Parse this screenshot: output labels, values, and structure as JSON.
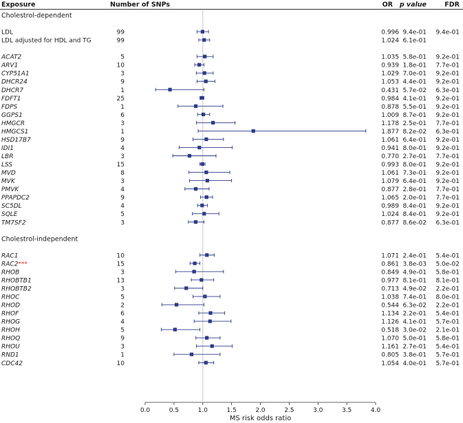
{
  "chart_data": {
    "type": "forest",
    "headers": {
      "exposure": "Exposure",
      "snps": "Number of SNPs",
      "or": "OR",
      "p": "p value",
      "fdr": "FDR"
    },
    "xlabel": "MS risk odds ratio",
    "xlim": [
      0.0,
      4.0
    ],
    "xticks": [
      "0.0",
      "0.5",
      "1.0",
      "1.5",
      "2.0",
      "2.5",
      "3.0",
      "3.5",
      "4.0"
    ],
    "reference_line": 1.0,
    "colors": {
      "marker": "#2e3a87",
      "reference": "#c8c8c8",
      "highlight": "#e8322e"
    },
    "rows": [
      {
        "kind": "section",
        "label": "Cholestrol-dependent"
      },
      {
        "kind": "spacer"
      },
      {
        "kind": "data",
        "label": "LDL",
        "italic": false,
        "snps": "99",
        "or": 0.996,
        "lo": 0.9,
        "hi": 1.1,
        "or_text": "0.996",
        "p": "9.4e-01",
        "fdr": "9.4e-01"
      },
      {
        "kind": "data",
        "label": " LDL adjusted for HDL and TG",
        "italic": false,
        "snps": "99",
        "or": 1.024,
        "lo": 0.93,
        "hi": 1.12,
        "or_text": "1.024",
        "p": "6.1e-01",
        "fdr": ""
      },
      {
        "kind": "spacer"
      },
      {
        "kind": "data",
        "label": "ACAT2",
        "italic": true,
        "snps": "5",
        "or": 1.035,
        "lo": 0.9,
        "hi": 1.18,
        "or_text": "1.035",
        "p": "5.8e-01",
        "fdr": "9.2e-01"
      },
      {
        "kind": "data",
        "label": "ARV1",
        "italic": true,
        "snps": "10",
        "or": 0.939,
        "lo": 0.86,
        "hi": 1.02,
        "or_text": "0.939",
        "p": "1.8e-01",
        "fdr": "7.7e-01"
      },
      {
        "kind": "data",
        "label": "CYP51A1",
        "italic": true,
        "snps": "3",
        "or": 1.029,
        "lo": 0.89,
        "hi": 1.18,
        "or_text": "1.029",
        "p": "7.0e-01",
        "fdr": "9.2e-01"
      },
      {
        "kind": "data",
        "label": "DHCR24",
        "italic": true,
        "snps": "9",
        "or": 1.053,
        "lo": 0.9,
        "hi": 1.21,
        "or_text": "1.053",
        "p": "4.4e-01",
        "fdr": "9.2e-01"
      },
      {
        "kind": "data",
        "label": "DHCR7",
        "italic": true,
        "snps": "1",
        "or": 0.431,
        "lo": 0.18,
        "hi": 1.02,
        "or_text": "0.431",
        "p": "5.7e-02",
        "fdr": "6.3e-01"
      },
      {
        "kind": "data",
        "label": "FDFT1",
        "italic": true,
        "snps": "25",
        "or": 0.984,
        "lo": 0.95,
        "hi": 1.02,
        "or_text": "0.984",
        "p": "4.1e-01",
        "fdr": "9.2e-01"
      },
      {
        "kind": "data",
        "label": "FDPS",
        "italic": true,
        "snps": "1",
        "or": 0.878,
        "lo": 0.57,
        "hi": 1.35,
        "or_text": "0.878",
        "p": "5.5e-01",
        "fdr": "9.2e-01"
      },
      {
        "kind": "data",
        "label": "GGPS1",
        "italic": true,
        "snps": "6",
        "or": 1.009,
        "lo": 0.91,
        "hi": 1.12,
        "or_text": "1.009",
        "p": "8.7e-01",
        "fdr": "9.2e-01"
      },
      {
        "kind": "data",
        "label": "HMGCR",
        "italic": true,
        "snps": "3",
        "or": 1.178,
        "lo": 0.89,
        "hi": 1.56,
        "or_text": "1.178",
        "p": "2.5e-01",
        "fdr": "7.7e-01"
      },
      {
        "kind": "data",
        "label": "HMGCS1",
        "italic": true,
        "snps": "1",
        "or": 1.877,
        "lo": 0.92,
        "hi": 3.83,
        "or_text": "1.877",
        "p": "8.2e-02",
        "fdr": "6.3e-01"
      },
      {
        "kind": "data",
        "label": "HSD17B7",
        "italic": true,
        "snps": "9",
        "or": 1.061,
        "lo": 0.83,
        "hi": 1.36,
        "or_text": "1.061",
        "p": "6.4e-01",
        "fdr": "9.2e-01"
      },
      {
        "kind": "data",
        "label": "IDI1",
        "italic": true,
        "snps": "4",
        "or": 0.941,
        "lo": 0.59,
        "hi": 1.51,
        "or_text": "0.941",
        "p": "8.0e-01",
        "fdr": "9.2e-01"
      },
      {
        "kind": "data",
        "label": "LBR",
        "italic": true,
        "snps": "3",
        "or": 0.77,
        "lo": 0.48,
        "hi": 1.23,
        "or_text": "0.770",
        "p": "2.7e-01",
        "fdr": "7.7e-01"
      },
      {
        "kind": "data",
        "label": "LSS",
        "italic": true,
        "snps": "15",
        "or": 0.993,
        "lo": 0.95,
        "hi": 1.04,
        "or_text": "0.993",
        "p": "8.0e-01",
        "fdr": "9.2e-01"
      },
      {
        "kind": "data",
        "label": "MVD",
        "italic": true,
        "snps": "8",
        "or": 1.061,
        "lo": 0.76,
        "hi": 1.47,
        "or_text": "1.061",
        "p": "7.3e-01",
        "fdr": "9.2e-01"
      },
      {
        "kind": "data",
        "label": "MVK",
        "italic": true,
        "snps": "3",
        "or": 1.079,
        "lo": 0.77,
        "hi": 1.5,
        "or_text": "1.079",
        "p": "6.4e-01",
        "fdr": "9.2e-01"
      },
      {
        "kind": "data",
        "label": "PMVK",
        "italic": true,
        "snps": "4",
        "or": 0.877,
        "lo": 0.69,
        "hi": 1.11,
        "or_text": "0.877",
        "p": "2.8e-01",
        "fdr": "7.7e-01"
      },
      {
        "kind": "data",
        "label": "PPAPDC2",
        "italic": true,
        "snps": "9",
        "or": 1.065,
        "lo": 0.96,
        "hi": 1.17,
        "or_text": "1.065",
        "p": "2.0e-01",
        "fdr": "7.7e-01"
      },
      {
        "kind": "data",
        "label": "SC5DL",
        "italic": true,
        "snps": "4",
        "or": 0.989,
        "lo": 0.91,
        "hi": 1.08,
        "or_text": "0.989",
        "p": "8.4e-01",
        "fdr": "9.2e-01"
      },
      {
        "kind": "data",
        "label": "SQLE",
        "italic": true,
        "snps": "5",
        "or": 1.024,
        "lo": 0.82,
        "hi": 1.28,
        "or_text": "1.024",
        "p": "8.4e-01",
        "fdr": "9.2e-01"
      },
      {
        "kind": "data",
        "label": "TM7SF2",
        "italic": true,
        "snps": "3",
        "or": 0.877,
        "lo": 0.75,
        "hi": 1.02,
        "or_text": "0.877",
        "p": "8.6e-02",
        "fdr": "6.3e-01"
      },
      {
        "kind": "spacer"
      },
      {
        "kind": "section",
        "label": "Cholestrol-independent"
      },
      {
        "kind": "spacer"
      },
      {
        "kind": "data",
        "label": "RAC1",
        "italic": true,
        "snps": "10",
        "or": 1.071,
        "lo": 0.95,
        "hi": 1.2,
        "or_text": "1.071",
        "p": "2.4e-01",
        "fdr": "5.4e-01"
      },
      {
        "kind": "data",
        "label": "RAC2",
        "marker_text": "***",
        "italic": true,
        "snps": "15",
        "or": 0.861,
        "lo": 0.78,
        "hi": 0.95,
        "or_text": "0.861",
        "p": "3.8e-03",
        "fdr": "5.0e-02"
      },
      {
        "kind": "data",
        "label": "RHOB",
        "italic": true,
        "snps": "3",
        "or": 0.849,
        "lo": 0.53,
        "hi": 1.36,
        "or_text": "0.849",
        "p": "4.9e-01",
        "fdr": "5.8e-01"
      },
      {
        "kind": "data",
        "label": "RHOBTB1",
        "italic": true,
        "snps": "13",
        "or": 0.977,
        "lo": 0.8,
        "hi": 1.19,
        "or_text": "0.977",
        "p": "8.1e-01",
        "fdr": "8.1e-01"
      },
      {
        "kind": "data",
        "label": "RHOBTB2",
        "italic": true,
        "snps": "3",
        "or": 0.713,
        "lo": 0.51,
        "hi": 1.0,
        "or_text": "0.713",
        "p": "4.9e-02",
        "fdr": "2.2e-01"
      },
      {
        "kind": "data",
        "label": "RHOC",
        "italic": true,
        "snps": "5",
        "or": 1.038,
        "lo": 0.83,
        "hi": 1.3,
        "or_text": "1.038",
        "p": "7.4e-01",
        "fdr": "8.0e-01"
      },
      {
        "kind": "data",
        "label": "RHOD",
        "italic": true,
        "snps": "2",
        "or": 0.544,
        "lo": 0.29,
        "hi": 1.02,
        "or_text": "0.544",
        "p": "6.3e-02",
        "fdr": "2.2e-01"
      },
      {
        "kind": "data",
        "label": "RHOF",
        "italic": true,
        "snps": "6",
        "or": 1.134,
        "lo": 0.93,
        "hi": 1.38,
        "or_text": "1.134",
        "p": "2.2e-01",
        "fdr": "5.4e-01"
      },
      {
        "kind": "data",
        "label": "RHOG",
        "italic": true,
        "snps": "4",
        "or": 1.126,
        "lo": 0.85,
        "hi": 1.49,
        "or_text": "1.126",
        "p": "4.1e-01",
        "fdr": "5.7e-01"
      },
      {
        "kind": "data",
        "label": "RHOH",
        "italic": true,
        "snps": "5",
        "or": 0.518,
        "lo": 0.28,
        "hi": 0.95,
        "or_text": "0.518",
        "p": "3.0e-02",
        "fdr": "2.1e-01"
      },
      {
        "kind": "data",
        "label": "RHOQ",
        "italic": true,
        "snps": "9",
        "or": 1.07,
        "lo": 0.88,
        "hi": 1.3,
        "or_text": "1.070",
        "p": "5.0e-01",
        "fdr": "5.8e-01"
      },
      {
        "kind": "data",
        "label": "RHOU",
        "italic": true,
        "snps": "3",
        "or": 1.161,
        "lo": 0.89,
        "hi": 1.51,
        "or_text": "1.161",
        "p": "2.7e-01",
        "fdr": "5.4e-01"
      },
      {
        "kind": "data",
        "label": "RND1",
        "italic": true,
        "snps": "1",
        "or": 0.805,
        "lo": 0.5,
        "hi": 1.3,
        "or_text": "0.805",
        "p": "3.8e-01",
        "fdr": "5.7e-01"
      },
      {
        "kind": "data",
        "label": "CDC42",
        "italic": true,
        "snps": "10",
        "or": 1.054,
        "lo": 0.93,
        "hi": 1.19,
        "or_text": "1.054",
        "p": "4.0e-01",
        "fdr": "5.7e-01"
      }
    ]
  }
}
